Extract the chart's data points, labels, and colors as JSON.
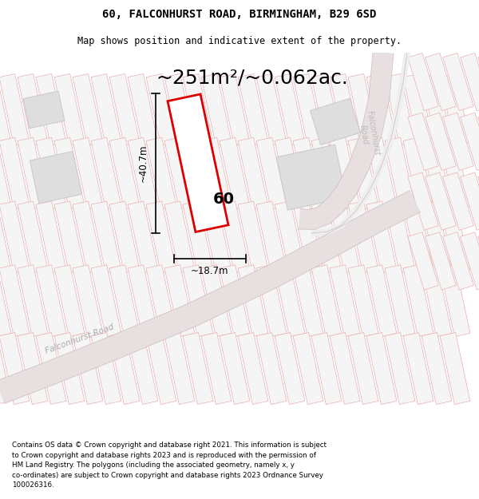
{
  "title": "60, FALCONHURST ROAD, BIRMINGHAM, B29 6SD",
  "subtitle": "Map shows position and indicative extent of the property.",
  "area_text": "~251m²/~0.062ac.",
  "dim_height": "~40.7m",
  "dim_width": "~18.7m",
  "label_60": "60",
  "footer_lines": [
    "Contains OS data © Crown copyright and database right 2021. This information is subject to Crown copyright and database rights 2023 and is reproduced with the permission of",
    "HM Land Registry. The polygons (including the associated geometry, namely x, y co-ordinates) are subject to Crown copyright and database rights 2023 Ordnance Survey",
    "100026316."
  ],
  "bg_color": "#ffffff",
  "map_bg": "#ffffff",
  "plot_face": "#f5f5f5",
  "plot_edge": "#e8b0b0",
  "road_face": "#e8e0e0",
  "road_edge": "#ccbbbb",
  "road_label_color": "#aaaaaa",
  "highlight_color": "#dd0000",
  "title_fontsize": 10,
  "subtitle_fontsize": 8.5,
  "area_fontsize": 18,
  "dim_fontsize": 8.5,
  "label_fontsize": 14,
  "footer_fontsize": 6.3
}
